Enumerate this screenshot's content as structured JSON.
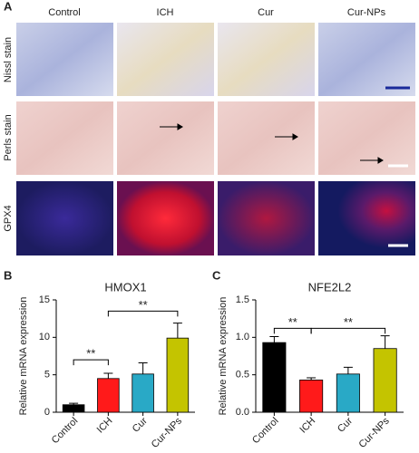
{
  "panel_a": {
    "label": "A",
    "columns": [
      "Control",
      "ICH",
      "Cur",
      "Cur-NPs"
    ],
    "rows": [
      "Nissl stain",
      "Perls stain",
      "GPX4"
    ]
  },
  "chart_data": [
    {
      "type": "bar",
      "panel": "B",
      "title": "HMOX1",
      "ylabel": "Relative mRNA expression",
      "categories": [
        "Control",
        "ICH",
        "Cur",
        "Cur-NPs"
      ],
      "values": [
        1.0,
        4.5,
        5.1,
        9.9
      ],
      "errors": [
        0.2,
        0.7,
        1.5,
        2.0
      ],
      "colors": [
        "#000000",
        "#ff1a1a",
        "#29a9c6",
        "#c4c400"
      ],
      "ylim": [
        0,
        15
      ],
      "yticks": [
        0,
        5,
        10,
        15
      ],
      "annotations": [
        {
          "text": "**",
          "from": 0,
          "to": 1,
          "y": 7
        },
        {
          "text": "**",
          "from": 1,
          "to": 3,
          "y": 13.5
        }
      ]
    },
    {
      "type": "bar",
      "panel": "C",
      "title": "NFE2L2",
      "ylabel": "Relative mRNA expression",
      "categories": [
        "Control",
        "ICH",
        "Cur",
        "Cur-NPs"
      ],
      "values": [
        0.93,
        0.43,
        0.51,
        0.85
      ],
      "errors": [
        0.08,
        0.03,
        0.09,
        0.17
      ],
      "colors": [
        "#000000",
        "#ff1a1a",
        "#29a9c6",
        "#c4c400"
      ],
      "ylim": [
        0,
        1.5
      ],
      "yticks": [
        {
          "value": 0,
          "label": "0.0"
        },
        0.5,
        {
          "value": 1,
          "label": "1.0"
        },
        1.5
      ],
      "annotations": [
        {
          "text": "**",
          "from": 0,
          "to": 1,
          "y": 1.12
        },
        {
          "text": "**",
          "from": 1,
          "to": 3,
          "y": 1.12
        }
      ]
    }
  ]
}
